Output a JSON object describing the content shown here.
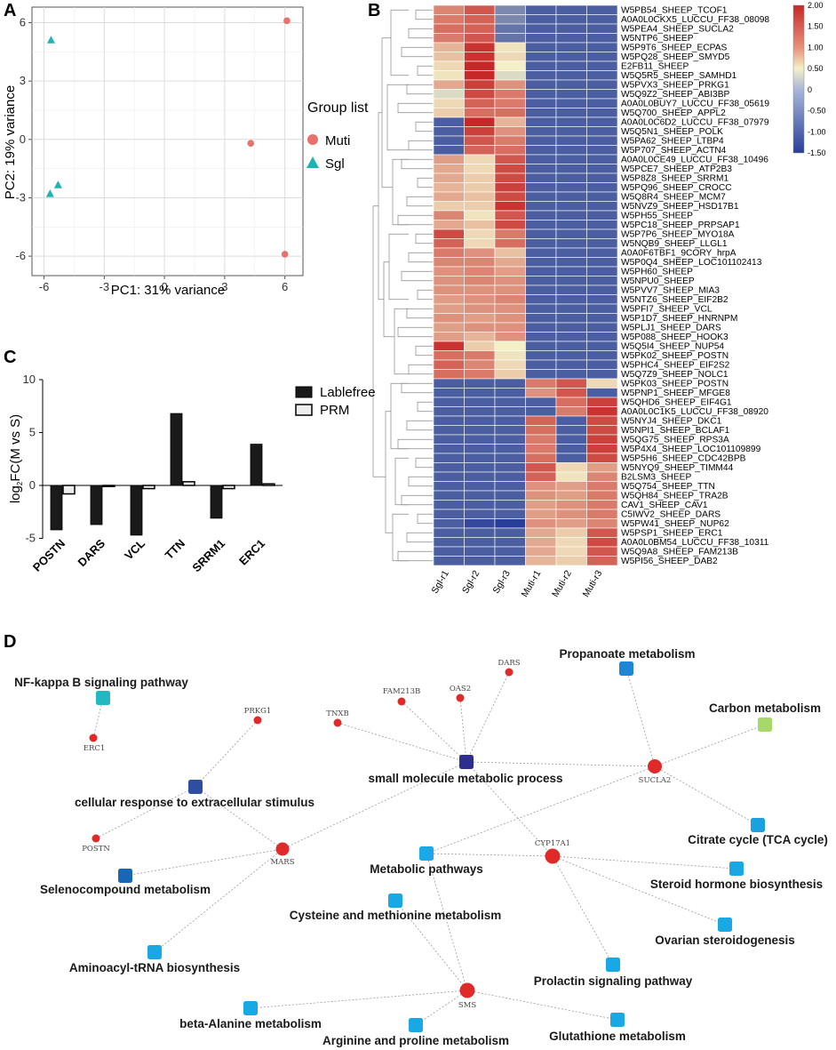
{
  "panels": {
    "a": "A",
    "b": "B",
    "c": "C",
    "d": "D"
  },
  "pca": {
    "xlabel": "PC1: 31% variance",
    "ylabel": "PC2: 19% variance",
    "xlim": [
      -6.6,
      6.9
    ],
    "ylim": [
      -7.0,
      6.8
    ],
    "xticks": [
      -6,
      -3,
      0,
      3,
      6
    ],
    "yticks": [
      -6,
      -3,
      0,
      3,
      6
    ],
    "legend_title": "Group list",
    "groups": [
      {
        "name": "Muti",
        "color": "#e8716b",
        "shape": "circle"
      },
      {
        "name": "Sgl",
        "color": "#1eb4b4",
        "shape": "triangle"
      }
    ],
    "points": [
      {
        "x": 6.1,
        "y": 6.1,
        "group": "Muti"
      },
      {
        "x": 4.3,
        "y": -0.2,
        "group": "Muti"
      },
      {
        "x": 6.0,
        "y": -5.9,
        "group": "Muti"
      },
      {
        "x": -5.65,
        "y": 5.1,
        "group": "Sgl"
      },
      {
        "x": -5.3,
        "y": -2.35,
        "group": "Sgl"
      },
      {
        "x": -5.7,
        "y": -2.8,
        "group": "Sgl"
      }
    ]
  },
  "chart_data": [
    {
      "type": "scatter",
      "title": "",
      "xlabel": "PC1: 31% variance",
      "ylabel": "PC2: 19% variance",
      "series": [
        {
          "name": "Muti",
          "x": [
            6.1,
            4.3,
            6.0
          ],
          "y": [
            6.1,
            -0.2,
            -5.9
          ]
        },
        {
          "name": "Sgl",
          "x": [
            -5.65,
            -5.3,
            -5.7
          ],
          "y": [
            5.1,
            -2.35,
            -2.8
          ]
        }
      ],
      "xlim": [
        -6.6,
        6.9
      ],
      "ylim": [
        -7.0,
        6.8
      ]
    },
    {
      "type": "bar",
      "title": "",
      "ylabel": "log2FC(M vs S)",
      "categories": [
        "POSTN",
        "DARS",
        "VCL",
        "TTN",
        "SRRM1",
        "ERC1"
      ],
      "series": [
        {
          "name": "Lablefree",
          "values": [
            -4.2,
            -3.7,
            -4.7,
            6.8,
            -3.1,
            3.9
          ]
        },
        {
          "name": "PRM",
          "values": [
            -0.8,
            -0.1,
            -0.3,
            0.35,
            -0.3,
            0.15
          ]
        }
      ],
      "ylim": [
        -5,
        10
      ]
    },
    {
      "type": "heatmap",
      "title": "",
      "columns": [
        "Sgl-r1",
        "Sgl-r2",
        "Sgl-r3",
        "Muti-r1",
        "Muti-r2",
        "Muti-r3"
      ],
      "scale_range": [
        -1.5,
        2.0
      ]
    }
  ],
  "bar": {
    "ylabel_prefix": "log",
    "ylabel_sub": "2",
    "ylabel_suffix": "FC(M vs S)",
    "yticks": [
      -5,
      0,
      5,
      10
    ],
    "ylim": [
      -5,
      10
    ],
    "categories": [
      "POSTN",
      "DARS",
      "VCL",
      "TTN",
      "SRRM1",
      "ERC1"
    ],
    "series": [
      {
        "name": "Lablefree",
        "color": "#1a1a1a",
        "values": [
          -4.2,
          -3.7,
          -4.7,
          6.8,
          -3.1,
          3.9
        ]
      },
      {
        "name": "PRM",
        "color": "#eeeeee",
        "values": [
          -0.8,
          -0.1,
          -0.3,
          0.35,
          -0.3,
          0.15
        ]
      }
    ]
  },
  "heatmap": {
    "columns": [
      "Sgl-r1",
      "Sgl-r2",
      "Sgl-r3",
      "Muti-r1",
      "Muti-r2",
      "Muti-r3"
    ],
    "scale_ticks": [
      "2.00",
      "1.50",
      "1.00",
      "0.50",
      "0",
      "-0.50",
      "-1.00",
      "-1.50"
    ],
    "scale_values": [
      2.0,
      1.5,
      1.0,
      0.5,
      0,
      -0.5,
      -1.0,
      -1.5
    ],
    "colors": {
      "high": "#c62828",
      "mid": "#f3f0c8",
      "low": "#283f9a"
    },
    "rows": [
      {
        "label": "W5PB54_SHEEP_TCOF1",
        "values": [
          0.9,
          1.3,
          -0.5,
          -0.7,
          -0.7,
          -0.7
        ]
      },
      {
        "label": "A0A0L0CKX5_LUCCU_FF38_08098",
        "values": [
          1.0,
          1.2,
          -0.5,
          -0.7,
          -0.7,
          -0.7
        ]
      },
      {
        "label": "W5PEA4_SHEEP_SUCLA2",
        "values": [
          1.1,
          1.2,
          -0.6,
          -0.7,
          -0.7,
          -0.7
        ]
      },
      {
        "label": "W5NTP6_SHEEP",
        "values": [
          1.0,
          1.3,
          -0.6,
          -0.7,
          -0.7,
          -0.7
        ]
      },
      {
        "label": "W5P9T6_SHEEP_ECPAS",
        "values": [
          0.5,
          1.6,
          0.1,
          -0.7,
          -0.7,
          -0.7
        ]
      },
      {
        "label": "W5PQ28_SHEEP_SMYD5",
        "values": [
          0.4,
          1.6,
          0.2,
          -0.7,
          -0.7,
          -0.7
        ]
      },
      {
        "label": "E2FB11_SHEEP",
        "values": [
          0.2,
          1.8,
          0.0,
          -0.7,
          -0.7,
          -0.7
        ]
      },
      {
        "label": "W5Q5R5_SHEEP_SAMHD1",
        "values": [
          0.1,
          1.8,
          -0.1,
          -0.7,
          -0.7,
          -0.7
        ]
      },
      {
        "label": "W5PVX3_SHEEP_PRKG1",
        "values": [
          0.6,
          1.5,
          0.8,
          -0.7,
          -0.7,
          -0.7
        ]
      },
      {
        "label": "W5Q9Z2_SHEEP_ABI3BP",
        "values": [
          -0.1,
          1.4,
          1.0,
          -0.7,
          -0.7,
          -0.7
        ]
      },
      {
        "label": "A0A0L0BUY7_LUCCU_FF38_05619",
        "values": [
          0.2,
          1.2,
          1.0,
          -0.7,
          -0.7,
          -0.7
        ]
      },
      {
        "label": "W5Q700_SHEEP_APPL2",
        "values": [
          0.3,
          1.1,
          1.1,
          -0.7,
          -0.7,
          -0.7
        ]
      },
      {
        "label": "A0A0L0C6D2_LUCCU_FF38_07979",
        "values": [
          -0.7,
          1.8,
          0.5,
          -0.7,
          -0.7,
          -0.7
        ]
      },
      {
        "label": "W5Q5N1_SHEEP_POLK",
        "values": [
          -0.7,
          1.5,
          0.8,
          -0.7,
          -0.7,
          -0.7
        ]
      },
      {
        "label": "W5PA62_SHEEP_LTBP4",
        "values": [
          -0.7,
          1.3,
          1.0,
          -0.7,
          -0.7,
          -0.7
        ]
      },
      {
        "label": "W5P707_SHEEP_ACTN4",
        "values": [
          -0.7,
          1.2,
          1.1,
          -0.7,
          -0.7,
          -0.7
        ]
      },
      {
        "label": "A0A0L0CE49_LUCCU_FF38_10496",
        "values": [
          0.7,
          0.2,
          1.3,
          -0.7,
          -0.7,
          -0.7
        ]
      },
      {
        "label": "W5PCE7_SHEEP_ATP2B3",
        "values": [
          0.6,
          0.2,
          1.4,
          -0.7,
          -0.7,
          -0.7
        ]
      },
      {
        "label": "W5P8Z8_SHEEP_SRRM1",
        "values": [
          0.6,
          0.3,
          1.4,
          -0.7,
          -0.7,
          -0.7
        ]
      },
      {
        "label": "W5PQ96_SHEEP_CROCC",
        "values": [
          0.5,
          0.3,
          1.5,
          -0.7,
          -0.7,
          -0.7
        ]
      },
      {
        "label": "W5Q8R4_SHEEP_MCM7",
        "values": [
          0.6,
          0.4,
          1.4,
          -0.7,
          -0.7,
          -0.7
        ]
      },
      {
        "label": "W5NVZ9_SHEEP_HSD17B1",
        "values": [
          0.3,
          0.3,
          1.6,
          -0.7,
          -0.7,
          -0.7
        ]
      },
      {
        "label": "W5PH55_SHEEP",
        "values": [
          0.9,
          0.1,
          1.3,
          -0.7,
          -0.7,
          -0.7
        ]
      },
      {
        "label": "W5PC18_SHEEP_PRPSAP1",
        "values": [
          0.6,
          0.4,
          1.4,
          -0.7,
          -0.7,
          -0.7
        ]
      },
      {
        "label": "W5P7P6_SHEEP_MYO18A",
        "values": [
          1.4,
          0.2,
          1.0,
          -0.7,
          -0.7,
          -0.7
        ]
      },
      {
        "label": "W5NQB9_SHEEP_LLGL1",
        "values": [
          1.2,
          0.2,
          1.1,
          -0.7,
          -0.7,
          -0.7
        ]
      },
      {
        "label": "A0A0F6TBF1_9CORY_hrpA",
        "values": [
          1.0,
          0.8,
          0.4,
          -0.7,
          -0.7,
          -0.7
        ]
      },
      {
        "label": "W5P0Q4_SHEEP_LOC101102413",
        "values": [
          0.9,
          0.9,
          0.6,
          -0.7,
          -0.7,
          -0.7
        ]
      },
      {
        "label": "W5PH60_SHEEP",
        "values": [
          0.8,
          0.9,
          0.7,
          -0.7,
          -0.7,
          -0.7
        ]
      },
      {
        "label": "W5NPU0_SHEEP",
        "values": [
          0.8,
          0.9,
          0.8,
          -0.7,
          -0.7,
          -0.7
        ]
      },
      {
        "label": "W5PVV7_SHEEP_MIA3",
        "values": [
          0.8,
          0.8,
          0.8,
          -0.7,
          -0.7,
          -0.7
        ]
      },
      {
        "label": "W5NTZ6_SHEEP_EIF2B2",
        "values": [
          0.7,
          0.8,
          0.9,
          -0.7,
          -0.7,
          -0.7
        ]
      },
      {
        "label": "W5PFI7_SHEEP_VCL",
        "values": [
          0.7,
          0.8,
          0.8,
          -0.7,
          -0.7,
          -0.7
        ]
      },
      {
        "label": "W5P1D7_SHEEP_HNRNPM",
        "values": [
          0.8,
          0.7,
          0.8,
          -0.7,
          -0.7,
          -0.7
        ]
      },
      {
        "label": "W5PLJ1_SHEEP_DARS",
        "values": [
          0.7,
          0.8,
          0.8,
          -0.7,
          -0.7,
          -0.7
        ]
      },
      {
        "label": "W5P088_SHEEP_HOOK3",
        "values": [
          0.7,
          0.5,
          0.8,
          -0.7,
          -0.7,
          -0.7
        ]
      },
      {
        "label": "W5Q5I4_SHEEP_NUP54",
        "values": [
          1.6,
          0.3,
          0.0,
          -0.7,
          -0.7,
          -0.7
        ]
      },
      {
        "label": "W5PK02_SHEEP_POSTN",
        "values": [
          1.1,
          1.0,
          0.1,
          -0.7,
          -0.7,
          -0.7
        ]
      },
      {
        "label": "W5PHC4_SHEEP_EIF2S2",
        "values": [
          1.2,
          0.9,
          0.2,
          -0.7,
          -0.7,
          -0.7
        ]
      },
      {
        "label": "W5Q7Z9_SHEEP_NOLC1",
        "values": [
          1.1,
          1.0,
          0.3,
          -0.7,
          -0.7,
          -0.7
        ]
      },
      {
        "label": "W5PK03_SHEEP_POSTN",
        "values": [
          -0.7,
          -0.7,
          -0.7,
          1.0,
          1.3,
          0.2
        ]
      },
      {
        "label": "W5PNP1_SHEEP_MFGE8",
        "values": [
          -0.7,
          -0.7,
          -0.7,
          0.8,
          1.3,
          -0.7
        ]
      },
      {
        "label": "W5QHD6_SHEEP_EIF4G1",
        "values": [
          -0.7,
          -0.7,
          -0.7,
          -0.7,
          1.1,
          1.5
        ]
      },
      {
        "label": "A0A0L0C1K5_LUCCU_FF38_08920",
        "values": [
          -0.7,
          -0.7,
          -0.7,
          -0.7,
          1.0,
          1.6
        ]
      },
      {
        "label": "W5NYJ4_SHEEP_DKC1",
        "values": [
          -0.7,
          -0.7,
          -0.7,
          1.2,
          -0.7,
          1.4
        ]
      },
      {
        "label": "W5NPI1_SHEEP_BCLAF1",
        "values": [
          -0.7,
          -0.7,
          -0.7,
          1.1,
          -0.7,
          1.4
        ]
      },
      {
        "label": "W5QG75_SHEEP_RPS3A",
        "values": [
          -0.7,
          -0.7,
          -0.7,
          1.0,
          -0.7,
          1.5
        ]
      },
      {
        "label": "W5P4X4_SHEEP_LOC101109899",
        "values": [
          -0.7,
          -0.7,
          -0.7,
          1.0,
          -0.7,
          1.5
        ]
      },
      {
        "label": "W5P5H6_SHEEP_CDC42BPB",
        "values": [
          -0.7,
          -0.7,
          -0.7,
          1.1,
          -0.7,
          1.4
        ]
      },
      {
        "label": "W5NYQ9_SHEEP_TIMM44",
        "values": [
          -0.7,
          -0.7,
          -0.7,
          1.3,
          0.2,
          0.7
        ]
      },
      {
        "label": "B2LSM3_SHEEP",
        "values": [
          -0.7,
          -0.7,
          -0.7,
          1.2,
          0.1,
          0.9
        ]
      },
      {
        "label": "W5Q754_SHEEP_TTN",
        "values": [
          -0.7,
          -0.7,
          -0.7,
          0.8,
          0.7,
          1.0
        ]
      },
      {
        "label": "W5QH84_SHEEP_TRA2B",
        "values": [
          -0.7,
          -0.7,
          -0.7,
          0.8,
          0.7,
          1.0
        ]
      },
      {
        "label": "CAV1_SHEEP_CAV1",
        "values": [
          -0.7,
          -0.7,
          -0.7,
          0.7,
          0.8,
          1.0
        ]
      },
      {
        "label": "C5IWV2_SHEEP_DARS",
        "values": [
          -0.7,
          -0.7,
          -0.7,
          0.7,
          0.8,
          1.0
        ]
      },
      {
        "label": "W5PW41_SHEEP_NUP62",
        "values": [
          -0.7,
          -0.8,
          -1.0,
          0.8,
          0.7,
          0.9
        ]
      },
      {
        "label": "W5PSP1_SHEEP_ERC1",
        "values": [
          -0.7,
          -0.7,
          -0.7,
          0.6,
          0.3,
          1.3
        ]
      },
      {
        "label": "A0A0L0BM54_LUCCU_FF38_10311",
        "values": [
          -0.7,
          -0.7,
          -0.7,
          0.6,
          0.2,
          1.4
        ]
      },
      {
        "label": "W5Q9A8_SHEEP_FAM213B",
        "values": [
          -0.7,
          -0.7,
          -0.7,
          0.6,
          0.2,
          1.3
        ]
      },
      {
        "label": "W5PI56_SHEEP_DAB2",
        "values": [
          -0.7,
          -0.7,
          -0.7,
          0.5,
          0.3,
          1.2
        ]
      }
    ]
  },
  "network": {
    "terms": [
      {
        "id": "nfkb",
        "label": "NF-kappa B signaling pathway",
        "color": "#21b8c2"
      },
      {
        "id": "propanoate",
        "label": "Propanoate metabolism",
        "color": "#1d87d6"
      },
      {
        "id": "carbon",
        "label": "Carbon metabolism",
        "color": "#a6d86b"
      },
      {
        "id": "small_mol",
        "label": "small molecule metabolic process",
        "color": "#2c2f8f"
      },
      {
        "id": "cell_resp",
        "label": "cellular response to extracellular stimulus",
        "color": "#2d4fa3"
      },
      {
        "id": "tca",
        "label": "Citrate cycle (TCA cycle)",
        "color": "#1aa2e0"
      },
      {
        "id": "selenocompound",
        "label": "Selenocompound metabolism",
        "color": "#1767b5"
      },
      {
        "id": "metabolic",
        "label": "Metabolic pathways",
        "color": "#1aa8e6"
      },
      {
        "id": "steroid",
        "label": "Steroid hormone biosynthesis",
        "color": "#18a8e3"
      },
      {
        "id": "cysteine",
        "label": "Cysteine and methionine metabolism",
        "color": "#18a8e3"
      },
      {
        "id": "ovarian",
        "label": "Ovarian steroidogenesis",
        "color": "#18a8e3"
      },
      {
        "id": "aminoacyl",
        "label": "Aminoacyl-tRNA biosynthesis",
        "color": "#18a8e3"
      },
      {
        "id": "prolactin",
        "label": "Prolactin signaling pathway",
        "color": "#18a8e3"
      },
      {
        "id": "beta_alanine",
        "label": "beta-Alanine metabolism",
        "color": "#18a8e3"
      },
      {
        "id": "glutathione",
        "label": "Glutathione metabolism",
        "color": "#18a8e3"
      },
      {
        "id": "arginine",
        "label": "Arginine and proline metabolism",
        "color": "#18a8e3"
      }
    ],
    "genes": [
      {
        "id": "erc1",
        "label": "ERC1"
      },
      {
        "id": "prkg1",
        "label": "PRKG1"
      },
      {
        "id": "tnxb",
        "label": "TNXB"
      },
      {
        "id": "fam213b",
        "label": "FAM213B"
      },
      {
        "id": "oas2",
        "label": "OAS2"
      },
      {
        "id": "dars",
        "label": "DARS"
      },
      {
        "id": "postn",
        "label": "POSTN"
      },
      {
        "id": "mars",
        "label": "MARS"
      },
      {
        "id": "sucla2",
        "label": "SUCLA2"
      },
      {
        "id": "cyp17a1",
        "label": "CYP17A1"
      },
      {
        "id": "sms",
        "label": "SMS"
      }
    ],
    "gene_color": "#e02a2a"
  }
}
